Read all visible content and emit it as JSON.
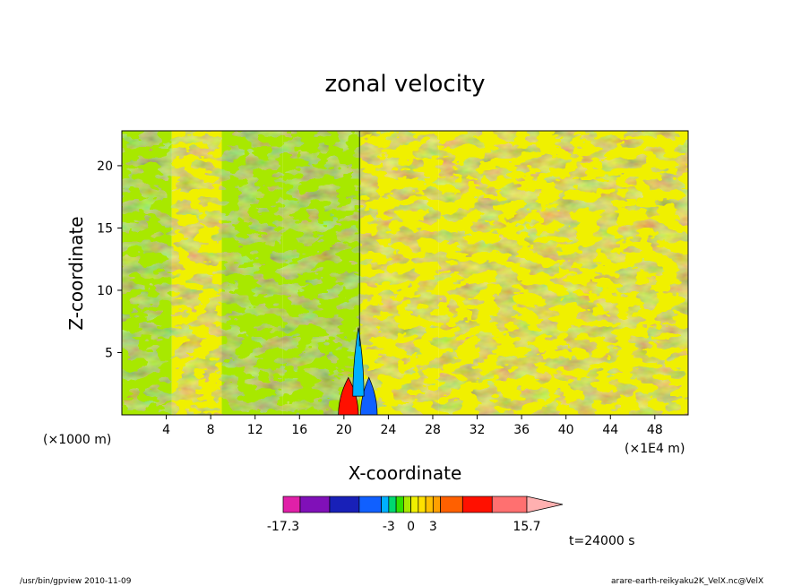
{
  "chart_data": {
    "type": "heatmap",
    "title": "zonal velocity",
    "xlabel": "X-coordinate",
    "ylabel": "Z-coordinate",
    "x_unit_left": "(×1000 m)",
    "x_unit_right": "(×1E4 m)",
    "xlim": [
      0,
      51
    ],
    "ylim": [
      0,
      22.8
    ],
    "x_ticks": [
      4,
      8,
      12,
      16,
      20,
      24,
      28,
      32,
      36,
      40,
      44,
      48
    ],
    "y_ticks": [
      5,
      10,
      15,
      20
    ],
    "colorbar": {
      "levels": [
        -17.3,
        -15.0,
        -11.0,
        -7.0,
        -4.0,
        -3.0,
        -2.0,
        -1.0,
        0.0,
        1.0,
        2.0,
        3.0,
        4.0,
        7.0,
        11.0,
        15.7
      ],
      "colors": [
        "#e020a8",
        "#8010b8",
        "#1820b8",
        "#1060ff",
        "#00b0ff",
        "#00d870",
        "#30e000",
        "#a8e800",
        "#f0f000",
        "#ffe000",
        "#ffc000",
        "#ffa000",
        "#ff6000",
        "#ff1000",
        "#ff7070",
        "#ffb0b0"
      ],
      "tick_labels": [
        "-17.3",
        "-3",
        "0",
        "3",
        "15.7"
      ]
    },
    "regions": [
      {
        "x0": 0,
        "x1": 4.5,
        "z0": 0,
        "z1": 22.8,
        "value": -0.5
      },
      {
        "x0": 4.5,
        "x1": 9,
        "z0": 0,
        "z1": 22.8,
        "value": 0.5
      },
      {
        "x0": 9,
        "x1": 14.5,
        "z0": 0,
        "z1": 22.8,
        "value": -0.5
      },
      {
        "x0": 14.5,
        "x1": 21.5,
        "z0": 0,
        "z1": 22.8,
        "value": -1.0
      },
      {
        "x0": 21.5,
        "x1": 28.5,
        "z0": 0,
        "z1": 22.8,
        "value": 0.8
      },
      {
        "x0": 28.5,
        "x1": 51,
        "z0": 0,
        "z1": 22.8,
        "value": 0.3
      },
      {
        "x0": 19.5,
        "x1": 21.3,
        "z0": 0,
        "z1": 3,
        "value": 7.0
      },
      {
        "x0": 21.5,
        "x1": 23.0,
        "z0": 0,
        "z1": 3,
        "value": -7.0
      },
      {
        "x0": 20.8,
        "x1": 21.8,
        "z0": 1.5,
        "z1": 7,
        "value": -4.0
      }
    ]
  },
  "annotations": {
    "time": "t=24000 s",
    "footer_left": "/usr/bin/gpview  2010-11-09",
    "footer_right": "arare-earth-reikyaku2K_VelX.nc@VelX"
  }
}
